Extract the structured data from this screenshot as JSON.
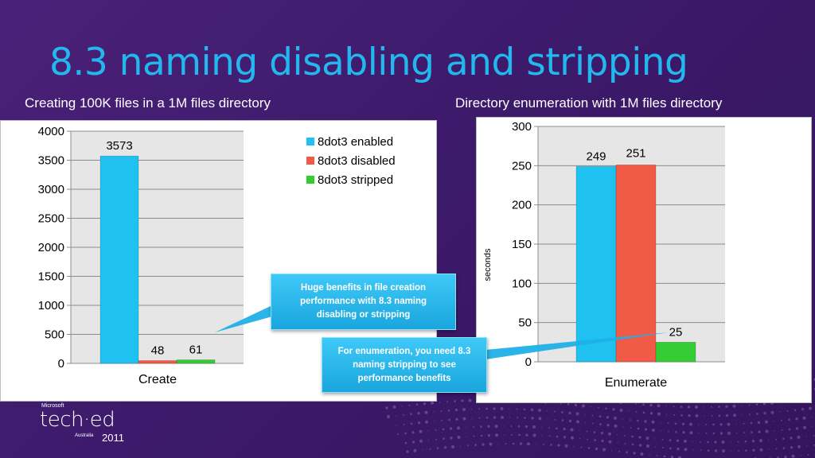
{
  "slide": {
    "title": "8.3 naming disabling and stripping",
    "left_chart_caption": "Creating 100K files in a 1M files directory",
    "right_chart_caption": "Directory enumeration with 1M files directory",
    "callout_1": "Huge benefits in file creation performance with 8.3 naming disabling or stripping",
    "callout_2": "For enumeration, you need 8.3 naming stripping to see performance benefits",
    "logo": {
      "brand_small": "Microsoft",
      "brand": "tech·ed",
      "region": "Australia",
      "year": "2011"
    }
  },
  "colors": {
    "background": "#3d1a6b",
    "title": "#22b8ee",
    "enabled": "#1ec1f0",
    "disabled": "#f05a46",
    "stripped": "#33cc33",
    "callout": "#29b6ec"
  },
  "chart_data": [
    {
      "type": "bar",
      "title": "Creating 100K files in a 1M files directory",
      "categories": [
        "Create"
      ],
      "series": [
        {
          "name": "8dot3 enabled",
          "values": [
            3573
          ]
        },
        {
          "name": "8dot3 disabled",
          "values": [
            48
          ]
        },
        {
          "name": "8dot3 stripped",
          "values": [
            61
          ]
        }
      ],
      "ylim": [
        0,
        4000
      ],
      "yticks": [
        0,
        500,
        1000,
        1500,
        2000,
        2500,
        3000,
        3500,
        4000
      ],
      "xlabel": "",
      "ylabel": "",
      "grid": true,
      "legend": "top-right",
      "data_labels": true
    },
    {
      "type": "bar",
      "title": "Directory enumeration with 1M files directory",
      "categories": [
        "Enumerate"
      ],
      "series": [
        {
          "name": "8dot3 enabled",
          "values": [
            249
          ]
        },
        {
          "name": "8dot3 disabled",
          "values": [
            251
          ]
        },
        {
          "name": "8dot3 stripped",
          "values": [
            25
          ]
        }
      ],
      "ylim": [
        0,
        300
      ],
      "yticks": [
        0,
        50,
        100,
        150,
        200,
        250,
        300
      ],
      "xlabel": "",
      "ylabel": "seconds",
      "grid": true,
      "legend": "none",
      "data_labels": true
    }
  ]
}
